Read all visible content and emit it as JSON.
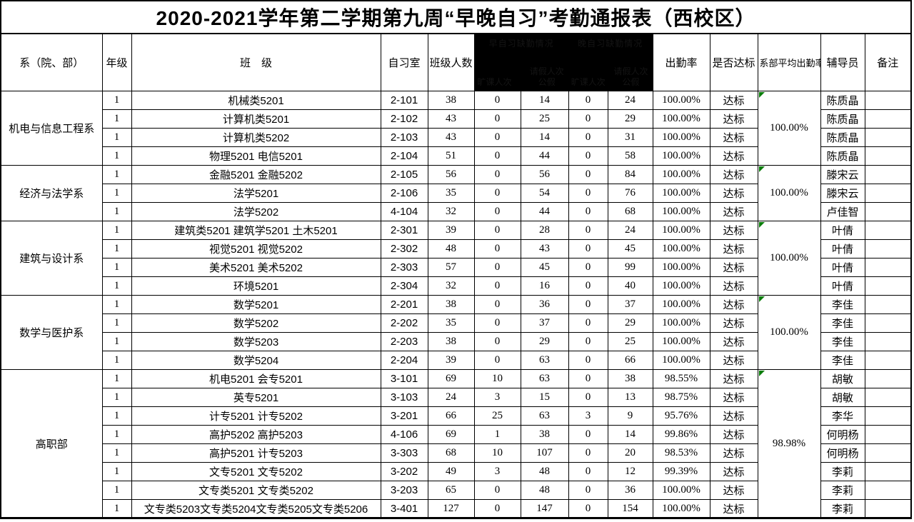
{
  "title": "2020-2021学年第二学期第九周“早晚自习”考勤通报表（西校区）",
  "columns": {
    "department": "系（院、部）",
    "grade": "年级",
    "class": "班　级",
    "room": "自习室",
    "class_size": "班级人数",
    "attendance_rate": "出勤率",
    "standard": "是否达标",
    "dept_avg_rate": "系部平均出勤率",
    "counselor": "辅导员",
    "remark": "备注"
  },
  "redacted": {
    "groups": [
      {
        "label": "早自习缺勤情况",
        "absent_label": "旷课人次",
        "leave_label": "请假人次",
        "official_label": "公假"
      },
      {
        "label": "晚自习缺勤情况",
        "absent_label": "旷课人次",
        "leave_label": "请假人次",
        "official_label": "公假"
      }
    ]
  },
  "sections": [
    {
      "department": "机电与信息工程系",
      "avg_rate": "100.00%",
      "rows": [
        {
          "grade": "1",
          "class": "机械类5201",
          "room": "2-101",
          "size": "38",
          "c1": "0",
          "c2": "14",
          "c3": "0",
          "c4": "24",
          "rate": "100.00%",
          "standard": "达标",
          "counselor": "陈质晶",
          "remark": ""
        },
        {
          "grade": "1",
          "class": "计算机类5201",
          "room": "2-102",
          "size": "43",
          "c1": "0",
          "c2": "25",
          "c3": "0",
          "c4": "29",
          "rate": "100.00%",
          "standard": "达标",
          "counselor": "陈质晶",
          "remark": ""
        },
        {
          "grade": "1",
          "class": "计算机类5202",
          "room": "2-103",
          "size": "43",
          "c1": "0",
          "c2": "14",
          "c3": "0",
          "c4": "31",
          "rate": "100.00%",
          "standard": "达标",
          "counselor": "陈质晶",
          "remark": ""
        },
        {
          "grade": "1",
          "class": "物理5201 电信5201",
          "room": "2-104",
          "size": "51",
          "c1": "0",
          "c2": "44",
          "c3": "0",
          "c4": "58",
          "rate": "100.00%",
          "standard": "达标",
          "counselor": "陈质晶",
          "remark": ""
        }
      ]
    },
    {
      "department": "经济与法学系",
      "avg_rate": "100.00%",
      "rows": [
        {
          "grade": "1",
          "class": "金融5201 金融5202",
          "room": "2-105",
          "size": "56",
          "c1": "0",
          "c2": "56",
          "c3": "0",
          "c4": "84",
          "rate": "100.00%",
          "standard": "达标",
          "counselor": "滕宋云",
          "remark": ""
        },
        {
          "grade": "1",
          "class": "法学5201",
          "room": "2-106",
          "size": "35",
          "c1": "0",
          "c2": "54",
          "c3": "0",
          "c4": "76",
          "rate": "100.00%",
          "standard": "达标",
          "counselor": "滕宋云",
          "remark": ""
        },
        {
          "grade": "1",
          "class": "法学5202",
          "room": "4-104",
          "size": "32",
          "c1": "0",
          "c2": "44",
          "c3": "0",
          "c4": "68",
          "rate": "100.00%",
          "standard": "达标",
          "counselor": "卢佳智",
          "remark": ""
        }
      ]
    },
    {
      "department": "建筑与设计系",
      "avg_rate": "100.00%",
      "rows": [
        {
          "grade": "1",
          "class": "建筑类5201 建筑学5201  土木5201",
          "room": "2-301",
          "size": "39",
          "c1": "0",
          "c2": "28",
          "c3": "0",
          "c4": "24",
          "rate": "100.00%",
          "standard": "达标",
          "counselor": "叶倩",
          "remark": ""
        },
        {
          "grade": "1",
          "class": "视觉5201 视觉5202",
          "room": "2-302",
          "size": "48",
          "c1": "0",
          "c2": "43",
          "c3": "0",
          "c4": "45",
          "rate": "100.00%",
          "standard": "达标",
          "counselor": "叶倩",
          "remark": ""
        },
        {
          "grade": "1",
          "class": "美术5201 美术5202",
          "room": "2-303",
          "size": "57",
          "c1": "0",
          "c2": "45",
          "c3": "0",
          "c4": "99",
          "rate": "100.00%",
          "standard": "达标",
          "counselor": "叶倩",
          "remark": ""
        },
        {
          "grade": "1",
          "class": "环境5201",
          "room": "2-304",
          "size": "32",
          "c1": "0",
          "c2": "16",
          "c3": "0",
          "c4": "40",
          "rate": "100.00%",
          "standard": "达标",
          "counselor": "叶倩",
          "remark": ""
        }
      ]
    },
    {
      "department": "数学与医护系",
      "avg_rate": "100.00%",
      "rows": [
        {
          "grade": "1",
          "class": "数学5201",
          "room": "2-201",
          "size": "38",
          "c1": "0",
          "c2": "36",
          "c3": "0",
          "c4": "37",
          "rate": "100.00%",
          "standard": "达标",
          "counselor": "李佳",
          "remark": ""
        },
        {
          "grade": "1",
          "class": "数学5202",
          "room": "2-202",
          "size": "35",
          "c1": "0",
          "c2": "37",
          "c3": "0",
          "c4": "29",
          "rate": "100.00%",
          "standard": "达标",
          "counselor": "李佳",
          "remark": ""
        },
        {
          "grade": "1",
          "class": "数学5203",
          "room": "2-203",
          "size": "38",
          "c1": "0",
          "c2": "29",
          "c3": "0",
          "c4": "25",
          "rate": "100.00%",
          "standard": "达标",
          "counselor": "李佳",
          "remark": ""
        },
        {
          "grade": "1",
          "class": "数学5204",
          "room": "2-204",
          "size": "39",
          "c1": "0",
          "c2": "63",
          "c3": "0",
          "c4": "66",
          "rate": "100.00%",
          "standard": "达标",
          "counselor": "李佳",
          "remark": ""
        }
      ]
    },
    {
      "department": "高职部",
      "avg_rate": "98.98%",
      "rows": [
        {
          "grade": "1",
          "class": "机电5201 会专5201",
          "room": "3-101",
          "size": "69",
          "c1": "10",
          "c2": "63",
          "c3": "0",
          "c4": "38",
          "rate": "98.55%",
          "standard": "达标",
          "counselor": "胡敏",
          "remark": ""
        },
        {
          "grade": "1",
          "class": "英专5201",
          "room": "3-103",
          "size": "24",
          "c1": "3",
          "c2": "15",
          "c3": "0",
          "c4": "13",
          "rate": "98.75%",
          "standard": "达标",
          "counselor": "胡敏",
          "remark": ""
        },
        {
          "grade": "1",
          "class": "计专5201 计专5202",
          "room": "3-201",
          "size": "66",
          "c1": "25",
          "c2": "63",
          "c3": "3",
          "c4": "9",
          "rate": "95.76%",
          "standard": "达标",
          "counselor": "李华",
          "remark": ""
        },
        {
          "grade": "1",
          "class": "高护5202 高护5203",
          "room": "4-106",
          "size": "69",
          "c1": "1",
          "c2": "38",
          "c3": "0",
          "c4": "14",
          "rate": "99.86%",
          "standard": "达标",
          "counselor": "何明杨",
          "remark": ""
        },
        {
          "grade": "1",
          "class": "高护5201 计专5203",
          "room": "3-303",
          "size": "68",
          "c1": "10",
          "c2": "107",
          "c3": "0",
          "c4": "20",
          "rate": "98.53%",
          "standard": "达标",
          "counselor": "何明杨",
          "remark": ""
        },
        {
          "grade": "1",
          "class": "文专5201  文专5202",
          "room": "3-202",
          "size": "49",
          "c1": "3",
          "c2": "48",
          "c3": "0",
          "c4": "12",
          "rate": "99.39%",
          "standard": "达标",
          "counselor": "李莉",
          "remark": ""
        },
        {
          "grade": "1",
          "class": "文专类5201 文专类5202",
          "room": "3-203",
          "size": "65",
          "c1": "0",
          "c2": "48",
          "c3": "0",
          "c4": "36",
          "rate": "100.00%",
          "standard": "达标",
          "counselor": "李莉",
          "remark": ""
        },
        {
          "grade": "1",
          "class": "文专类5203文专类5204文专类5205文专类5206",
          "room": "3-401",
          "size": "127",
          "c1": "0",
          "c2": "147",
          "c3": "0",
          "c4": "154",
          "rate": "100.00%",
          "standard": "达标",
          "counselor": "李莉",
          "remark": ""
        }
      ]
    }
  ],
  "colors": {
    "border": "#000000",
    "redaction_bg": "#000000",
    "redaction_text": "#141414",
    "error_triangle_green": "#0a7d0a",
    "background": "#ffffff"
  }
}
